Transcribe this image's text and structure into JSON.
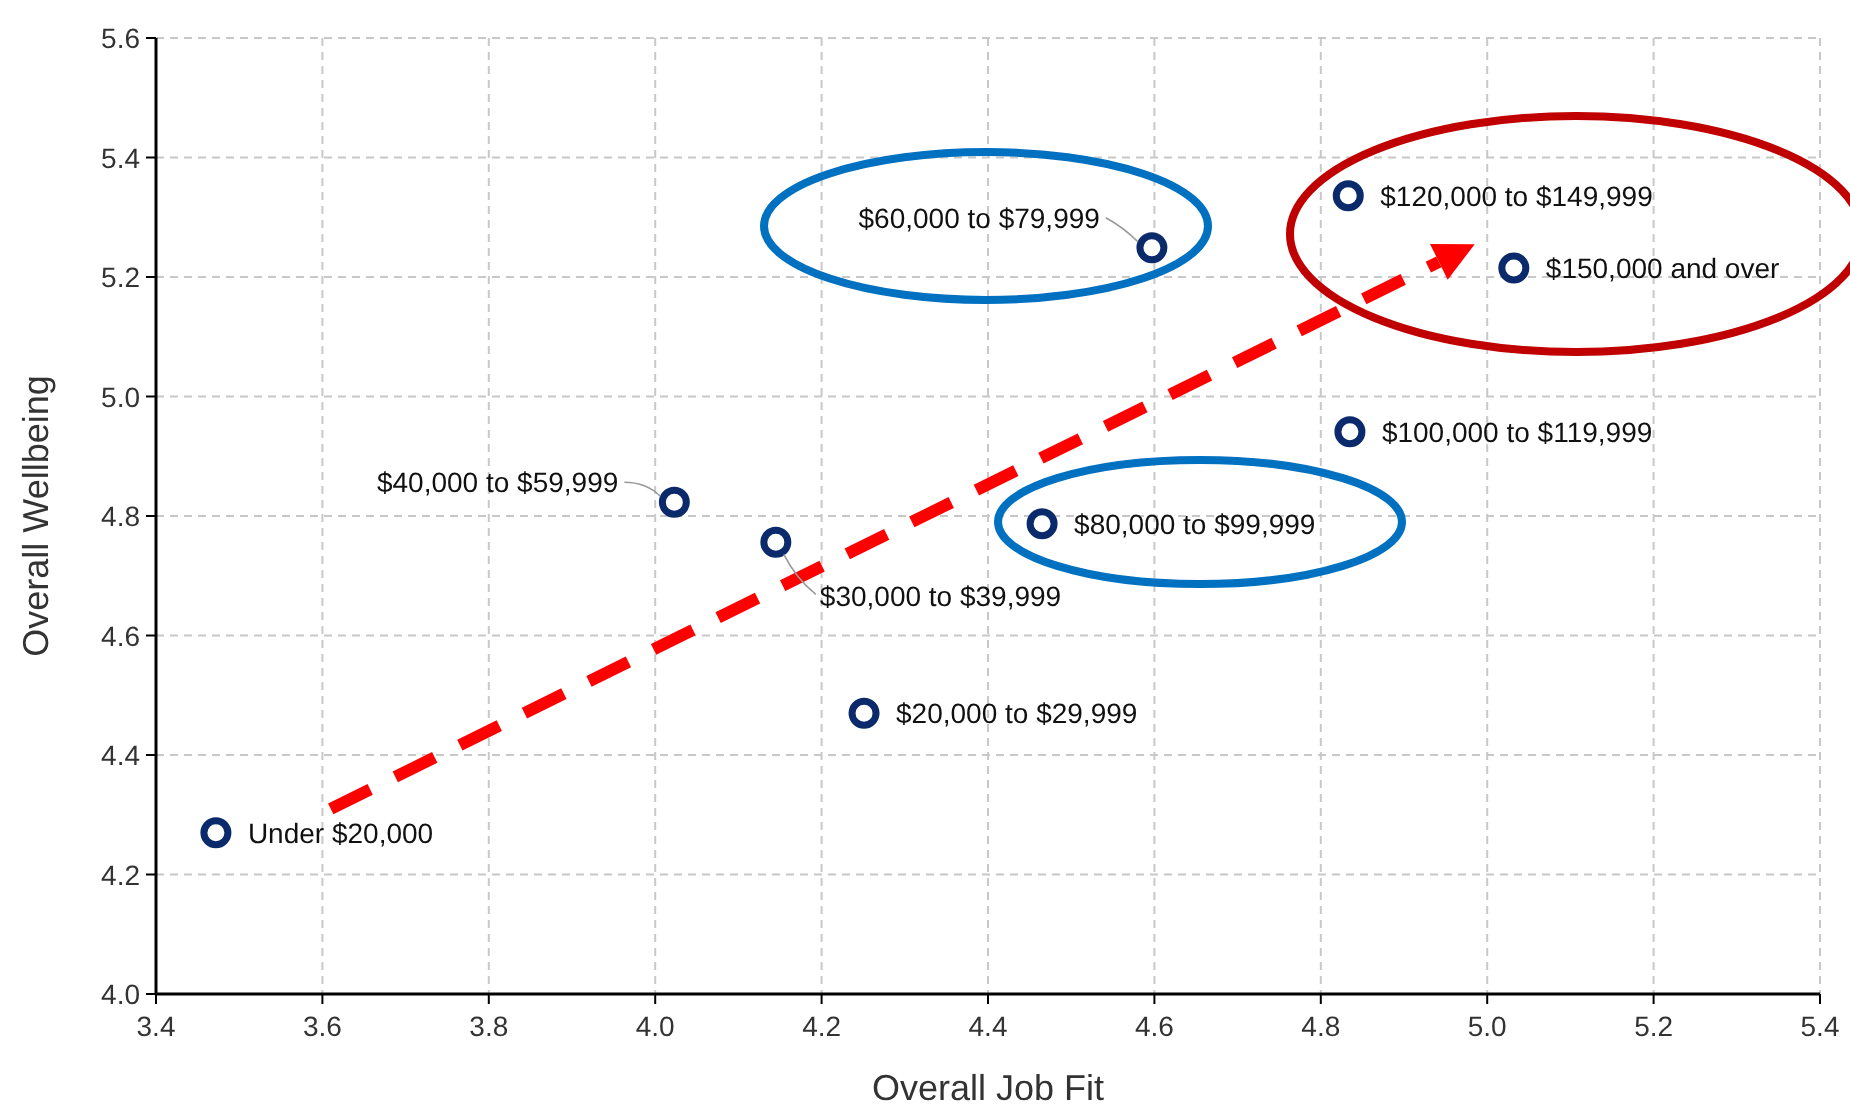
{
  "chart_data": {
    "type": "scatter",
    "xlabel": "Overall Job Fit",
    "ylabel": "Overall Wellbeing",
    "x": [
      3.472,
      4.251,
      4.145,
      4.023,
      4.597,
      4.465,
      4.835,
      4.833,
      5.032
    ],
    "values": [
      4.27,
      4.47,
      4.756,
      4.823,
      5.249,
      4.787,
      4.941,
      5.336,
      5.215
    ],
    "color": "#0b2a6b",
    "marker": "circle",
    "grid": true,
    "xlim": [
      3.4,
      5.4
    ],
    "xticks": [
      {
        "value": 3.4,
        "label": "3.4"
      },
      {
        "value": 3.6,
        "label": "3.6"
      },
      {
        "value": 3.8,
        "label": "3.8"
      },
      {
        "value": 4.0,
        "label": "4.0"
      },
      {
        "value": 4.2,
        "label": "4.2"
      },
      {
        "value": 4.4,
        "label": "4.4"
      },
      {
        "value": 4.6,
        "label": "4.6"
      },
      {
        "value": 4.8,
        "label": "4.8"
      },
      {
        "value": 5.0,
        "label": "5.0"
      },
      {
        "value": 5.2,
        "label": "5.2"
      },
      {
        "value": 5.4,
        "label": "5.4"
      }
    ],
    "ylim": [
      4.0,
      5.6
    ],
    "yticks": [
      {
        "value": 4.0,
        "label": "4.0"
      },
      {
        "value": 4.2,
        "label": "4.2"
      },
      {
        "value": 4.4,
        "label": "4.4"
      },
      {
        "value": 4.6,
        "label": "4.6"
      },
      {
        "value": 4.8,
        "label": "4.8"
      },
      {
        "value": 5.0,
        "label": "5.0"
      },
      {
        "value": 5.2,
        "label": "5.2"
      },
      {
        "value": 5.4,
        "label": "5.4"
      },
      {
        "value": 5.6,
        "label": "5.6"
      }
    ],
    "annotations": [
      {
        "text": "Under $20,000",
        "x": 3.472,
        "y": 4.27
      },
      {
        "text": "$20,000 to $29,999",
        "x": 4.251,
        "y": 4.47
      },
      {
        "text": "$30,000 to $39,999",
        "x": 4.145,
        "y": 4.756
      },
      {
        "text": "$40,000 to $59,999",
        "x": 4.023,
        "y": 4.823
      },
      {
        "text": "$60,000 to $79,999",
        "x": 4.597,
        "y": 5.249
      },
      {
        "text": "$80,000 to $99,999",
        "x": 4.465,
        "y": 4.787
      },
      {
        "text": "$100,000 to $119,999",
        "x": 4.835,
        "y": 4.941
      },
      {
        "text": "$120,000 to $149,999",
        "x": 4.833,
        "y": 5.336
      },
      {
        "text": "$150,000 and over",
        "x": 5.032,
        "y": 5.215
      }
    ]
  }
}
